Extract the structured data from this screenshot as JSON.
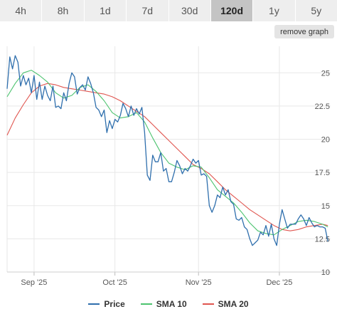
{
  "timeframes": {
    "items": [
      "4h",
      "8h",
      "1d",
      "7d",
      "30d",
      "120d",
      "1y",
      "5y"
    ],
    "active": "120d"
  },
  "remove_graph_label": "remove graph",
  "chart_data": {
    "type": "line",
    "y_ticks": [
      10,
      12.5,
      15,
      17.5,
      20,
      22.5,
      25
    ],
    "y_tick_labels": [
      "10",
      "12.5",
      "15",
      "17.5",
      "20",
      "22.5",
      "25"
    ],
    "ylim": [
      10,
      27
    ],
    "x_ticks": [
      {
        "label": "Sep '25",
        "day": 10
      },
      {
        "label": "Oct '25",
        "day": 40
      },
      {
        "label": "Nov '25",
        "day": 71
      },
      {
        "label": "Dec '25",
        "day": 101
      }
    ],
    "xlim": [
      0,
      120
    ],
    "grid": true,
    "legend_position": "bottom",
    "series": [
      {
        "name": "Price",
        "color": "#2f6fad",
        "points": [
          [
            0,
            23.8
          ],
          [
            1,
            26.2
          ],
          [
            2,
            25.3
          ],
          [
            3,
            26.3
          ],
          [
            4,
            25.8
          ],
          [
            5,
            24.0
          ],
          [
            6,
            24.8
          ],
          [
            7,
            24.1
          ],
          [
            8,
            24.6
          ],
          [
            9,
            23.5
          ],
          [
            10,
            24.8
          ],
          [
            11,
            23.0
          ],
          [
            12,
            24.3
          ],
          [
            13,
            23.0
          ],
          [
            14,
            24.0
          ],
          [
            15,
            23.3
          ],
          [
            16,
            22.9
          ],
          [
            17,
            24.0
          ],
          [
            18,
            22.4
          ],
          [
            19,
            22.5
          ],
          [
            20,
            22.3
          ],
          [
            21,
            23.5
          ],
          [
            22,
            22.9
          ],
          [
            23,
            24.2
          ],
          [
            24,
            25.0
          ],
          [
            25,
            24.7
          ],
          [
            26,
            23.4
          ],
          [
            27,
            23.9
          ],
          [
            28,
            24.1
          ],
          [
            29,
            23.7
          ],
          [
            30,
            24.7
          ],
          [
            31,
            24.2
          ],
          [
            32,
            23.5
          ],
          [
            33,
            22.4
          ],
          [
            34,
            22.2
          ],
          [
            35,
            21.7
          ],
          [
            36,
            22.2
          ],
          [
            37,
            20.5
          ],
          [
            38,
            21.4
          ],
          [
            39,
            20.8
          ],
          [
            40,
            21.5
          ],
          [
            41,
            21.3
          ],
          [
            42,
            21.8
          ],
          [
            43,
            22.7
          ],
          [
            44,
            22.3
          ],
          [
            45,
            21.7
          ],
          [
            46,
            22.5
          ],
          [
            47,
            21.8
          ],
          [
            48,
            22.3
          ],
          [
            49,
            21.9
          ],
          [
            50,
            22.4
          ],
          [
            51,
            20.5
          ],
          [
            52,
            17.3
          ],
          [
            53,
            16.9
          ],
          [
            54,
            18.8
          ],
          [
            55,
            18.3
          ],
          [
            56,
            18.3
          ],
          [
            57,
            19.0
          ],
          [
            58,
            17.6
          ],
          [
            59,
            17.8
          ],
          [
            60,
            16.8
          ],
          [
            61,
            16.8
          ],
          [
            62,
            17.5
          ],
          [
            63,
            18.4
          ],
          [
            64,
            18.0
          ],
          [
            65,
            17.4
          ],
          [
            66,
            17.8
          ],
          [
            67,
            17.6
          ],
          [
            68,
            18.0
          ],
          [
            69,
            18.5
          ],
          [
            70,
            18.2
          ],
          [
            71,
            18.4
          ],
          [
            72,
            17.3
          ],
          [
            73,
            17.4
          ],
          [
            74,
            17.2
          ],
          [
            75,
            15.0
          ],
          [
            76,
            14.5
          ],
          [
            77,
            15.0
          ],
          [
            78,
            15.8
          ],
          [
            79,
            15.6
          ],
          [
            80,
            16.4
          ],
          [
            81,
            15.8
          ],
          [
            82,
            16.2
          ],
          [
            83,
            15.3
          ],
          [
            84,
            15.1
          ],
          [
            85,
            14.0
          ],
          [
            86,
            13.9
          ],
          [
            87,
            14.1
          ],
          [
            88,
            13.4
          ],
          [
            89,
            13.2
          ],
          [
            90,
            12.5
          ],
          [
            91,
            12.0
          ],
          [
            92,
            12.2
          ],
          [
            93,
            12.4
          ],
          [
            94,
            13.0
          ],
          [
            95,
            12.8
          ],
          [
            96,
            13.5
          ],
          [
            97,
            12.7
          ],
          [
            98,
            13.6
          ],
          [
            99,
            12.5
          ],
          [
            100,
            12.0
          ],
          [
            101,
            13.6
          ],
          [
            102,
            14.7
          ],
          [
            103,
            14.0
          ],
          [
            104,
            13.3
          ],
          [
            105,
            13.6
          ],
          [
            106,
            13.6
          ],
          [
            107,
            13.6
          ],
          [
            108,
            14.0
          ],
          [
            109,
            14.3
          ],
          [
            110,
            14.0
          ],
          [
            111,
            13.5
          ],
          [
            112,
            14.1
          ],
          [
            113,
            13.7
          ],
          [
            114,
            13.4
          ],
          [
            115,
            13.5
          ],
          [
            116,
            13.4
          ],
          [
            117,
            13.4
          ],
          [
            118,
            13.3
          ],
          [
            119,
            12.3
          ]
        ]
      },
      {
        "name": "SMA 10",
        "color": "#4cc36f",
        "points": [
          [
            0,
            23.2
          ],
          [
            3,
            24.2
          ],
          [
            6,
            25.0
          ],
          [
            9,
            25.2
          ],
          [
            12,
            24.8
          ],
          [
            15,
            24.3
          ],
          [
            18,
            23.5
          ],
          [
            21,
            23.1
          ],
          [
            24,
            23.3
          ],
          [
            27,
            23.9
          ],
          [
            30,
            24.1
          ],
          [
            33,
            23.6
          ],
          [
            36,
            22.9
          ],
          [
            39,
            22.0
          ],
          [
            42,
            21.6
          ],
          [
            45,
            21.7
          ],
          [
            48,
            22.0
          ],
          [
            51,
            21.3
          ],
          [
            54,
            20.1
          ],
          [
            57,
            19.0
          ],
          [
            60,
            18.2
          ],
          [
            63,
            17.9
          ],
          [
            66,
            17.7
          ],
          [
            69,
            18.0
          ],
          [
            72,
            17.9
          ],
          [
            75,
            17.1
          ],
          [
            78,
            16.2
          ],
          [
            81,
            15.7
          ],
          [
            84,
            15.2
          ],
          [
            87,
            14.5
          ],
          [
            90,
            13.7
          ],
          [
            93,
            13.1
          ],
          [
            96,
            12.9
          ],
          [
            99,
            12.8
          ],
          [
            102,
            13.2
          ],
          [
            105,
            13.5
          ],
          [
            108,
            13.8
          ],
          [
            111,
            13.9
          ],
          [
            114,
            13.8
          ],
          [
            117,
            13.6
          ],
          [
            119,
            13.4
          ]
        ]
      },
      {
        "name": "SMA 20",
        "color": "#e0554f",
        "points": [
          [
            0,
            20.3
          ],
          [
            3,
            21.6
          ],
          [
            6,
            22.6
          ],
          [
            9,
            23.5
          ],
          [
            12,
            24.0
          ],
          [
            15,
            24.2
          ],
          [
            18,
            24.1
          ],
          [
            21,
            23.9
          ],
          [
            24,
            23.8
          ],
          [
            27,
            23.7
          ],
          [
            30,
            23.6
          ],
          [
            33,
            23.5
          ],
          [
            36,
            23.4
          ],
          [
            39,
            23.2
          ],
          [
            42,
            22.9
          ],
          [
            45,
            22.5
          ],
          [
            48,
            22.1
          ],
          [
            51,
            21.7
          ],
          [
            54,
            21.1
          ],
          [
            57,
            20.5
          ],
          [
            60,
            19.9
          ],
          [
            63,
            19.3
          ],
          [
            66,
            18.7
          ],
          [
            69,
            18.1
          ],
          [
            72,
            17.8
          ],
          [
            75,
            17.4
          ],
          [
            78,
            16.8
          ],
          [
            81,
            16.2
          ],
          [
            84,
            15.7
          ],
          [
            87,
            15.2
          ],
          [
            90,
            14.7
          ],
          [
            93,
            14.3
          ],
          [
            96,
            13.9
          ],
          [
            99,
            13.5
          ],
          [
            102,
            13.2
          ],
          [
            105,
            13.1
          ],
          [
            108,
            13.2
          ],
          [
            111,
            13.4
          ],
          [
            114,
            13.5
          ],
          [
            117,
            13.6
          ],
          [
            119,
            13.5
          ]
        ]
      }
    ]
  }
}
